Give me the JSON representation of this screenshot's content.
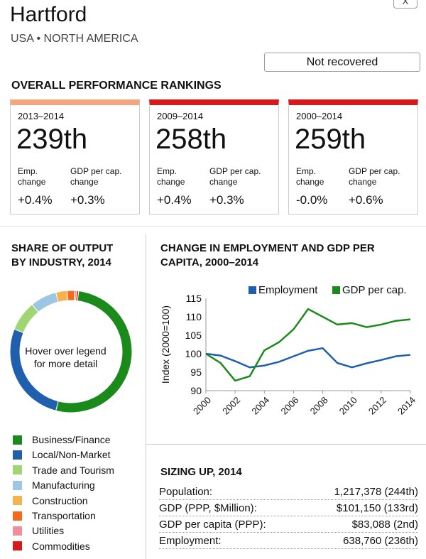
{
  "header": {
    "title": "Hartford",
    "subtitle": "USA • NORTH AMERICA",
    "close": "X",
    "status": "Not recovered"
  },
  "rankings": {
    "heading": "OVERALL PERFORMANCE RANKINGS",
    "emp_label": "Emp. change",
    "gdp_label": "GDP per cap. change",
    "cards": [
      {
        "period": "2013–2014",
        "rank": "239th",
        "emp": "+0.4%",
        "gdp": "+0.3%",
        "color": "#f4a582"
      },
      {
        "period": "2009–2014",
        "rank": "258th",
        "emp": "+0.4%",
        "gdp": "+0.3%",
        "color": "#d7191c"
      },
      {
        "period": "2000–2014",
        "rank": "259th",
        "emp": "-0.0%",
        "gdp": "+0.6%",
        "color": "#d7191c"
      }
    ]
  },
  "share": {
    "heading1": "SHARE OF OUTPUT",
    "heading2": "BY INDUSTRY, 2014",
    "center1": "Hover over legend",
    "center2": "for more detail",
    "items": [
      {
        "label": "Business/Finance",
        "color": "#1a8a1a",
        "share": 0.52
      },
      {
        "label": "Local/Non-Market",
        "color": "#1f5fae",
        "share": 0.27
      },
      {
        "label": "Trade and Tourism",
        "color": "#9fd672",
        "share": 0.08
      },
      {
        "label": "Manufacturing",
        "color": "#9cc7e4",
        "share": 0.07
      },
      {
        "label": "Construction",
        "color": "#f6b24f",
        "share": 0.03
      },
      {
        "label": "Transportation",
        "color": "#f26a1b",
        "share": 0.02
      },
      {
        "label": "Utilities",
        "color": "#f28e9a",
        "share": 0.005
      },
      {
        "label": "Commodities",
        "color": "#d7191c",
        "share": 0.005
      }
    ]
  },
  "chart_data": {
    "type": "line",
    "title": "CHANGE IN EMPLOYMENT AND GDP PER",
    "title2": "CAPITA, 2000–2014",
    "ylabel": "Index (2000=100)",
    "ylim": [
      90,
      115
    ],
    "yticks": [
      90,
      95,
      100,
      105,
      110,
      115
    ],
    "xticks": [
      2000,
      2002,
      2004,
      2006,
      2008,
      2010,
      2012,
      2014
    ],
    "x": [
      2000,
      2001,
      2002,
      2003,
      2004,
      2005,
      2006,
      2007,
      2008,
      2009,
      2010,
      2011,
      2012,
      2013,
      2014
    ],
    "legend_position": "top-right",
    "series": [
      {
        "name": "Employment",
        "color": "#1f5fae",
        "values": [
          100,
          99.5,
          98,
          96.3,
          96.8,
          97.8,
          99.3,
          100.8,
          101.5,
          97.5,
          96.3,
          97.4,
          98.3,
          99.3,
          99.7
        ]
      },
      {
        "name": "GDP per cap.",
        "color": "#1a8a1a",
        "values": [
          100,
          97.5,
          92.7,
          93.9,
          100.9,
          103.1,
          106.6,
          112.1,
          110,
          107.9,
          108.3,
          107.2,
          107.9,
          108.9,
          109.3
        ]
      }
    ]
  },
  "sizing": {
    "heading": "SIZING UP, 2014",
    "rows": [
      {
        "label": "Population:",
        "value": "1,217,378 (244th)"
      },
      {
        "label": "GDP (PPP, $Million):",
        "value": "$101,150 (133rd)"
      },
      {
        "label": "GDP per capita (PPP):",
        "value": "$83,088 (2nd)"
      },
      {
        "label": "Employment:",
        "value": "638,760 (236th)"
      }
    ]
  }
}
